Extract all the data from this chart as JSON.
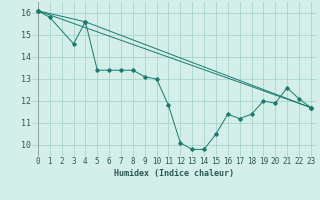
{
  "xlabel": "Humidex (Indice chaleur)",
  "bg_color": "#d4eeea",
  "grid_color": "#a8d4ce",
  "line_color": "#1a7a6e",
  "xlim": [
    -0.5,
    23.5
  ],
  "ylim": [
    9.5,
    16.5
  ],
  "xticks": [
    0,
    1,
    2,
    3,
    4,
    5,
    6,
    7,
    8,
    9,
    10,
    11,
    12,
    13,
    14,
    15,
    16,
    17,
    18,
    19,
    20,
    21,
    22,
    23
  ],
  "yticks": [
    10,
    11,
    12,
    13,
    14,
    15,
    16
  ],
  "series1_x": [
    0,
    1,
    3,
    4,
    5,
    6,
    7,
    8,
    9,
    10,
    11,
    12,
    13,
    14,
    15,
    16,
    17,
    18,
    19,
    20,
    21,
    22,
    23
  ],
  "series1_y": [
    16.1,
    15.8,
    14.6,
    15.6,
    13.4,
    13.4,
    13.4,
    13.4,
    13.1,
    13.0,
    11.8,
    10.1,
    9.8,
    9.8,
    10.5,
    11.4,
    11.2,
    11.4,
    12.0,
    11.9,
    12.6,
    12.1,
    11.7
  ],
  "series2_x": [
    0,
    23
  ],
  "series2_y": [
    16.1,
    11.7
  ],
  "series3_x": [
    0,
    4,
    23
  ],
  "series3_y": [
    16.1,
    15.6,
    11.7
  ],
  "xlabel_fontsize": 6.0,
  "tick_fontsize": 5.5,
  "ytick_fontsize": 6.0,
  "linewidth": 0.7,
  "markersize": 1.8
}
